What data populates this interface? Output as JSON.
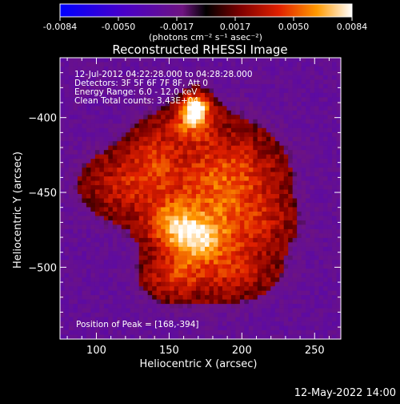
{
  "chart_data": {
    "type": "heatmap",
    "title": "Reconstructed RHESSI Image",
    "xlabel": "Heliocentric X (arcsec)",
    "ylabel": "Heliocentric Y (arcsec)",
    "xlim": [
      75,
      268
    ],
    "ylim": [
      -548,
      -360
    ],
    "x_ticks": [
      100,
      150,
      200,
      250
    ],
    "y_ticks": [
      -400,
      -450,
      -500
    ],
    "colorbar": {
      "ticks": [
        "-0.0084",
        "-0.0050",
        "-0.0017",
        "0.0017",
        "0.0050",
        "0.0084"
      ],
      "range": [
        -0.0084,
        0.0084
      ],
      "unit_label": "(photons cm⁻² s⁻¹ asec⁻²)"
    },
    "annotations": [
      "12-Jul-2012 04:22:28.000 to 04:28:28.000",
      "Detectors: 3F 5F 6F 7F 8F, Att 0",
      "Energy Range: 6.0 - 12.0 keV",
      "Clean    Total counts: 3.43E+04"
    ],
    "peak_label": "Position of Peak = [168,-394]",
    "peak_position": [
      168,
      -394
    ],
    "sources": [
      {
        "x": 168,
        "y": -394,
        "sx": 6,
        "sy": 6,
        "amp": 1.0
      },
      {
        "x": 165,
        "y": -405,
        "sx": 10,
        "sy": 8,
        "amp": 0.45
      },
      {
        "x": 168,
        "y": -480,
        "sx": 14,
        "sy": 10,
        "amp": 0.62
      },
      {
        "x": 150,
        "y": -470,
        "sx": 12,
        "sy": 10,
        "amp": 0.45
      },
      {
        "x": 175,
        "y": -455,
        "sx": 18,
        "sy": 30,
        "amp": 0.38
      },
      {
        "x": 125,
        "y": -445,
        "sx": 20,
        "sy": 14,
        "amp": 0.34
      },
      {
        "x": 200,
        "y": -440,
        "sx": 18,
        "sy": 18,
        "amp": 0.34
      },
      {
        "x": 155,
        "y": -505,
        "sx": 14,
        "sy": 10,
        "amp": 0.35
      },
      {
        "x": 195,
        "y": -500,
        "sx": 18,
        "sy": 12,
        "amp": 0.3
      },
      {
        "x": 140,
        "y": -425,
        "sx": 12,
        "sy": 14,
        "amp": 0.28
      },
      {
        "x": 210,
        "y": -470,
        "sx": 16,
        "sy": 12,
        "amp": 0.26
      }
    ],
    "date_stamp": "12-May-2022 14:00"
  }
}
